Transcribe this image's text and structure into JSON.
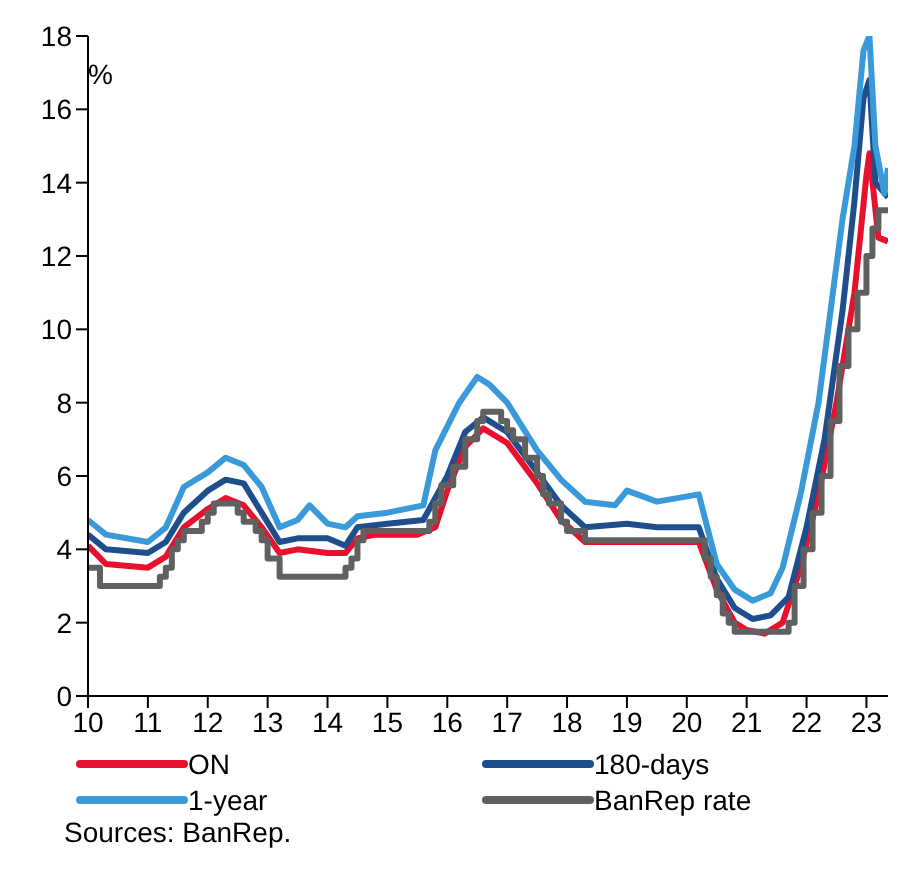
{
  "chart_data": {
    "type": "line",
    "ylabel": "%",
    "xlim": [
      10,
      23.36
    ],
    "xticks": [
      10,
      11,
      12,
      13,
      14,
      15,
      16,
      17,
      18,
      19,
      20,
      21,
      22,
      23
    ],
    "ylim": [
      0,
      18
    ],
    "yticks": [
      0,
      2,
      4,
      6,
      8,
      10,
      12,
      14,
      16,
      18
    ],
    "grid": false,
    "legend": "bottom",
    "marker": "none",
    "annotations": [
      "Sources: BanRep."
    ],
    "series": [
      {
        "name": "ON",
        "color": "#e8112d",
        "x": [
          10.0,
          10.3,
          11.0,
          11.3,
          11.6,
          12.0,
          12.3,
          12.6,
          12.9,
          13.2,
          13.5,
          14.0,
          14.3,
          14.5,
          14.8,
          15.5,
          15.8,
          16.0,
          16.3,
          16.6,
          17.0,
          17.5,
          17.9,
          18.3,
          19.0,
          20.2,
          20.5,
          20.8,
          21.0,
          21.3,
          21.6,
          21.9,
          22.2,
          22.5,
          22.8,
          23.0,
          23.05,
          23.2,
          23.36
        ],
        "values": [
          4.1,
          3.6,
          3.5,
          3.8,
          4.6,
          5.1,
          5.4,
          5.2,
          4.6,
          3.9,
          4.0,
          3.9,
          3.9,
          4.3,
          4.4,
          4.4,
          4.6,
          5.6,
          6.8,
          7.3,
          6.9,
          5.8,
          4.8,
          4.2,
          4.2,
          4.2,
          2.9,
          2.0,
          1.8,
          1.7,
          2.0,
          3.5,
          5.5,
          8.0,
          11.0,
          14.2,
          14.8,
          12.5,
          12.4
        ]
      },
      {
        "name": "180-days",
        "color": "#1f4e8c",
        "x": [
          10.0,
          10.3,
          11.0,
          11.3,
          11.6,
          12.0,
          12.3,
          12.6,
          12.9,
          13.2,
          13.5,
          14.0,
          14.3,
          14.5,
          15.0,
          15.6,
          16.0,
          16.3,
          16.6,
          17.0,
          17.5,
          17.9,
          18.3,
          19.0,
          19.5,
          20.2,
          20.5,
          20.8,
          21.1,
          21.4,
          21.7,
          22.0,
          22.3,
          22.6,
          22.8,
          22.95,
          23.05,
          23.15,
          23.36
        ],
        "values": [
          4.4,
          4.0,
          3.9,
          4.2,
          5.0,
          5.6,
          5.9,
          5.8,
          5.0,
          4.2,
          4.3,
          4.3,
          4.1,
          4.6,
          4.7,
          4.8,
          6.0,
          7.2,
          7.6,
          7.2,
          6.1,
          5.2,
          4.6,
          4.7,
          4.6,
          4.6,
          3.2,
          2.4,
          2.1,
          2.2,
          2.7,
          4.6,
          7.0,
          10.5,
          13.5,
          16.3,
          16.8,
          14.0,
          13.6
        ]
      },
      {
        "name": "1-year",
        "color": "#3a9ad9",
        "x": [
          10.0,
          10.3,
          11.0,
          11.3,
          11.6,
          12.0,
          12.3,
          12.6,
          12.9,
          13.2,
          13.5,
          13.7,
          14.0,
          14.3,
          14.5,
          15.0,
          15.6,
          15.8,
          16.2,
          16.5,
          16.7,
          17.0,
          17.5,
          17.9,
          18.3,
          18.8,
          19.0,
          19.5,
          20.2,
          20.5,
          20.8,
          21.1,
          21.4,
          21.6,
          21.9,
          22.2,
          22.4,
          22.6,
          22.8,
          22.95,
          23.05,
          23.15,
          23.3,
          23.36
        ],
        "values": [
          4.8,
          4.4,
          4.2,
          4.6,
          5.7,
          6.1,
          6.5,
          6.3,
          5.7,
          4.6,
          4.8,
          5.2,
          4.7,
          4.6,
          4.9,
          5.0,
          5.2,
          6.7,
          8.0,
          8.7,
          8.5,
          8.0,
          6.7,
          5.9,
          5.3,
          5.2,
          5.6,
          5.3,
          5.5,
          3.6,
          2.9,
          2.6,
          2.8,
          3.5,
          5.5,
          8.0,
          10.5,
          13.0,
          15.0,
          17.6,
          18.0,
          15.0,
          13.7,
          14.4
        ]
      },
      {
        "name": "BanRep rate",
        "color": "#606060",
        "type": "step",
        "x": [
          10.0,
          10.2,
          11.1,
          11.2,
          11.3,
          11.4,
          11.5,
          11.6,
          11.9,
          12.0,
          12.1,
          12.5,
          12.6,
          12.8,
          12.9,
          13.0,
          13.2,
          14.3,
          14.4,
          14.5,
          14.6,
          15.7,
          15.8,
          15.9,
          16.1,
          16.3,
          16.5,
          16.6,
          16.9,
          17.0,
          17.1,
          17.3,
          17.5,
          17.6,
          17.7,
          17.9,
          18.0,
          18.3,
          20.2,
          20.3,
          20.4,
          20.5,
          20.6,
          20.7,
          20.8,
          21.7,
          21.8,
          21.95,
          22.1,
          22.25,
          22.4,
          22.55,
          22.7,
          22.85,
          23.0,
          23.1,
          23.2,
          23.36
        ],
        "values": [
          3.5,
          3.0,
          3.0,
          3.25,
          3.5,
          4.0,
          4.25,
          4.5,
          4.75,
          5.0,
          5.25,
          5.0,
          4.75,
          4.5,
          4.25,
          3.75,
          3.25,
          3.5,
          3.75,
          4.25,
          4.5,
          4.75,
          5.25,
          5.75,
          6.25,
          7.0,
          7.5,
          7.75,
          7.5,
          7.25,
          7.0,
          6.5,
          6.0,
          5.5,
          5.25,
          4.75,
          4.5,
          4.25,
          4.25,
          3.75,
          3.25,
          2.75,
          2.25,
          2.0,
          1.75,
          2.0,
          3.0,
          4.0,
          5.0,
          6.0,
          7.5,
          9.0,
          10.0,
          11.0,
          12.0,
          12.75,
          13.25,
          13.25
        ]
      }
    ]
  }
}
